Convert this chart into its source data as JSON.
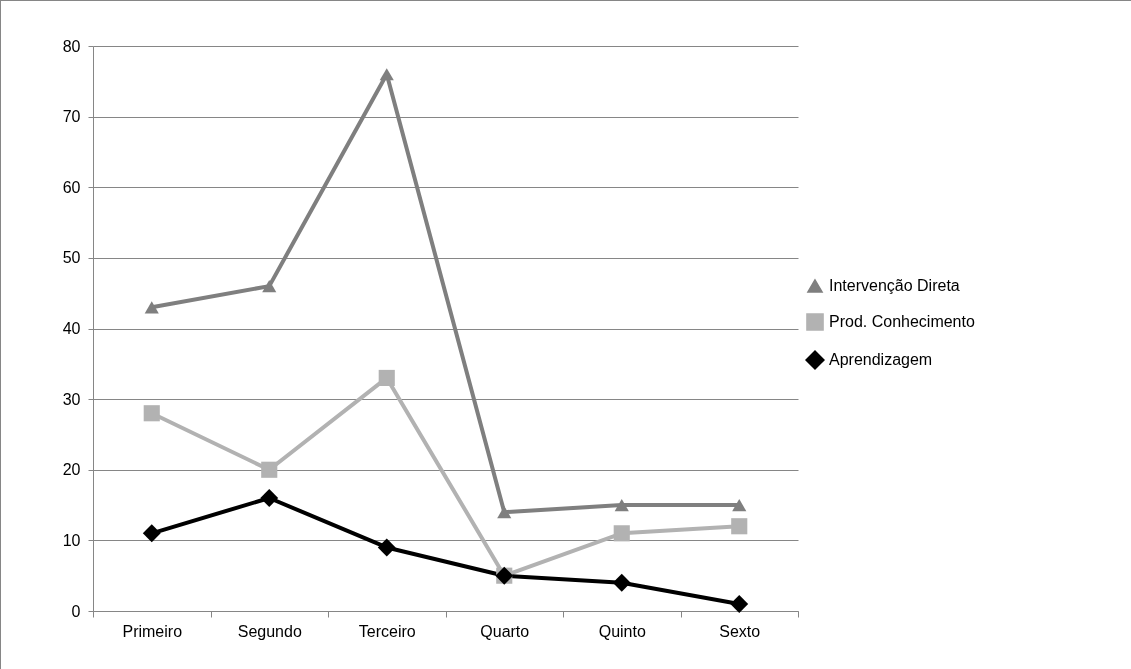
{
  "chart_data": {
    "type": "line",
    "categories": [
      "Primeiro",
      "Segundo",
      "Terceiro",
      "Quarto",
      "Quinto",
      "Sexto"
    ],
    "ylim": [
      0,
      80
    ],
    "yticks": [
      0,
      10,
      20,
      30,
      40,
      50,
      60,
      70,
      80
    ],
    "grid": "y",
    "legend": "right",
    "series": [
      {
        "name": "Intervenção Direta",
        "color": "#7f7f7f",
        "marker": "triangle",
        "values": [
          43,
          46,
          76,
          14,
          15,
          15
        ]
      },
      {
        "name": "Prod. Conhecimento",
        "color": "#b2b2b2",
        "marker": "square",
        "values": [
          28,
          20,
          33,
          5,
          11,
          12
        ]
      },
      {
        "name": "Aprendizagem",
        "color": "#000000",
        "marker": "diamond",
        "values": [
          11,
          16,
          9,
          5,
          4,
          1
        ]
      }
    ]
  }
}
